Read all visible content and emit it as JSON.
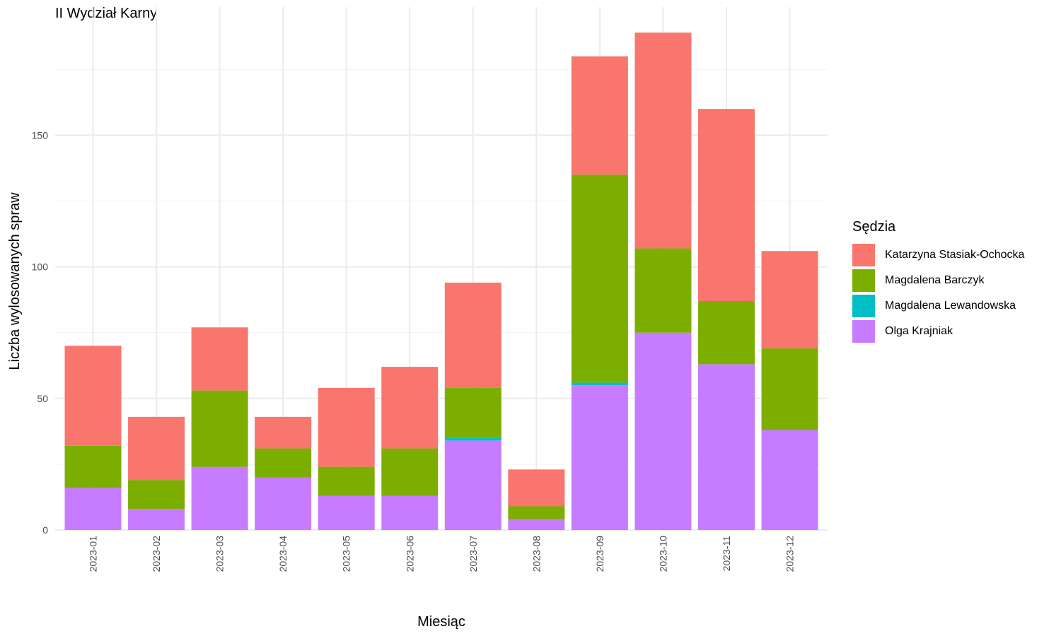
{
  "chart_data": {
    "type": "bar",
    "stacked": true,
    "title": "II Wydział Karny",
    "xlabel": "Miesiąc",
    "ylabel": "Liczba wylosowanych spraw",
    "ylim": [
      0,
      200
    ],
    "yticks": [
      0,
      50,
      100,
      150
    ],
    "grid": true,
    "legend_title": "Sędzia",
    "legend_position": "right",
    "categories": [
      "2023-01",
      "2023-02",
      "2023-03",
      "2023-04",
      "2023-05",
      "2023-06",
      "2023-07",
      "2023-08",
      "2023-09",
      "2023-10",
      "2023-11",
      "2023-12"
    ],
    "series": [
      {
        "name": "Katarzyna Stasiak-Ochocka",
        "color": "#F8766D",
        "values": [
          38,
          24,
          24,
          12,
          30,
          31,
          40,
          14,
          45,
          82,
          73,
          37
        ]
      },
      {
        "name": "Magdalena Barczyk",
        "color": "#7CAE00",
        "values": [
          16,
          11,
          29,
          11,
          11,
          18,
          19,
          5,
          79,
          32,
          24,
          31
        ]
      },
      {
        "name": "Magdalena Lewandowska",
        "color": "#00BFC4",
        "values": [
          0,
          0,
          0,
          0,
          0,
          0,
          1,
          0,
          1,
          0,
          0,
          0
        ]
      },
      {
        "name": "Olga Krajniak",
        "color": "#C77CFF",
        "values": [
          16,
          8,
          24,
          20,
          13,
          13,
          34,
          4,
          55,
          75,
          63,
          38
        ]
      }
    ]
  }
}
